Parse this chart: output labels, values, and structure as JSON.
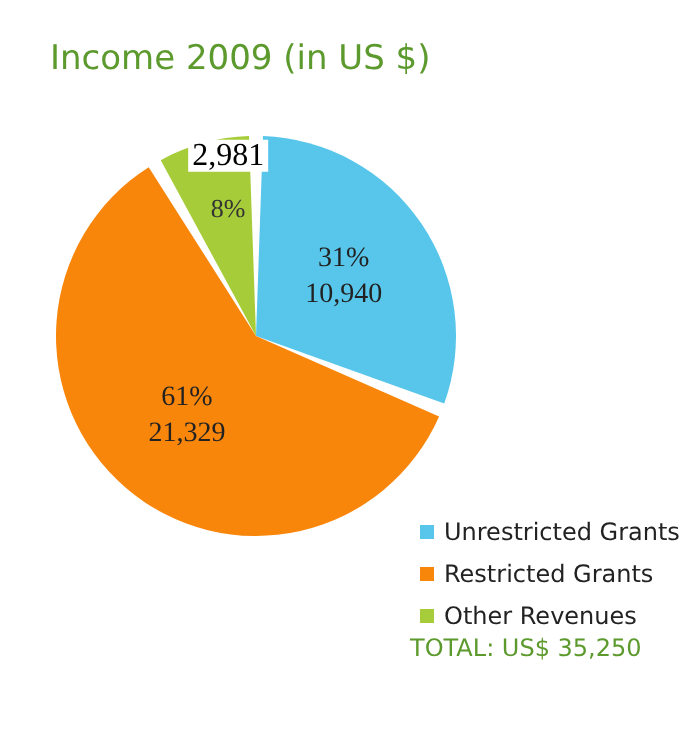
{
  "chart_data": {
    "type": "pie",
    "title": "Income 2009 (in US $)",
    "categories": [
      "Unrestricted Grants",
      "Restricted Grants",
      "Other Revenues"
    ],
    "values": [
      10940,
      21329,
      2981
    ],
    "colors": [
      "#57c6ea",
      "#f8860b",
      "#a6cd39"
    ],
    "value_labels": [
      "31%\n10,940",
      "61%\n21,329",
      "2,981\n8%"
    ],
    "legend": "bottom right",
    "annotations": [
      "TOTAL: US$ 35,250"
    ]
  }
}
